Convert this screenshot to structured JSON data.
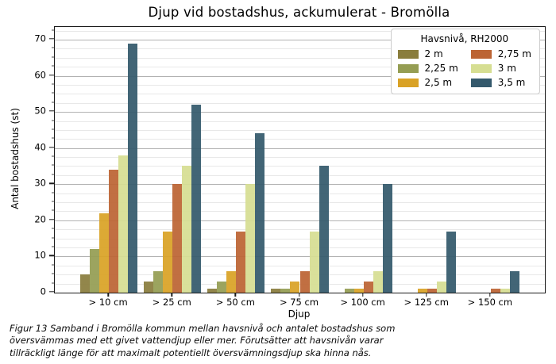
{
  "caption": "Figur 13 Samband i Bromölla kommun mellan havsnivå och antalet bostadshus som översvämmas med ett givet vattendjup eller mer. Förutsätter att havsnivån varar tillräckligt länge för att maximalt potentiellt översvämningsdjup ska hinna nås.",
  "chart_data": {
    "type": "bar",
    "title": "Djup vid bostadshus, ackumulerat - Bromölla",
    "xlabel": "Djup",
    "ylabel": "Antal bostadshus (st)",
    "legend_title": "Havsnivå, RH2000",
    "legend_position": "upper right",
    "grid": true,
    "categories": [
      "> 10 cm",
      "> 25 cm",
      "> 50 cm",
      "> 75 cm",
      "> 100 cm",
      "> 125 cm",
      "> 150 cm"
    ],
    "series": [
      {
        "name": "2 m",
        "color": "#8a7d3d",
        "values": [
          5,
          3,
          1,
          1,
          0,
          0,
          0
        ]
      },
      {
        "name": "2,25 m",
        "color": "#959d53",
        "values": [
          12,
          6,
          3,
          1,
          1,
          0,
          0
        ]
      },
      {
        "name": "2,5 m",
        "color": "#d9a226",
        "values": [
          22,
          17,
          6,
          3,
          1,
          1,
          0
        ]
      },
      {
        "name": "2,75 m",
        "color": "#bc6434",
        "values": [
          34,
          30,
          17,
          6,
          3,
          1,
          1
        ]
      },
      {
        "name": "3 m",
        "color": "#d6de92",
        "values": [
          38,
          35,
          30,
          17,
          6,
          3,
          1
        ]
      },
      {
        "name": "3,5 m",
        "color": "#34596c",
        "values": [
          69,
          52,
          44,
          35,
          30,
          17,
          6
        ]
      }
    ],
    "y_ticks": [
      0,
      10,
      20,
      30,
      40,
      50,
      60,
      70
    ],
    "y_minor_step": 2.5,
    "ylim": [
      0,
      73.5
    ],
    "grid_major_color": "#b2b2b2",
    "grid_minor_color": "#e8e8e8"
  }
}
